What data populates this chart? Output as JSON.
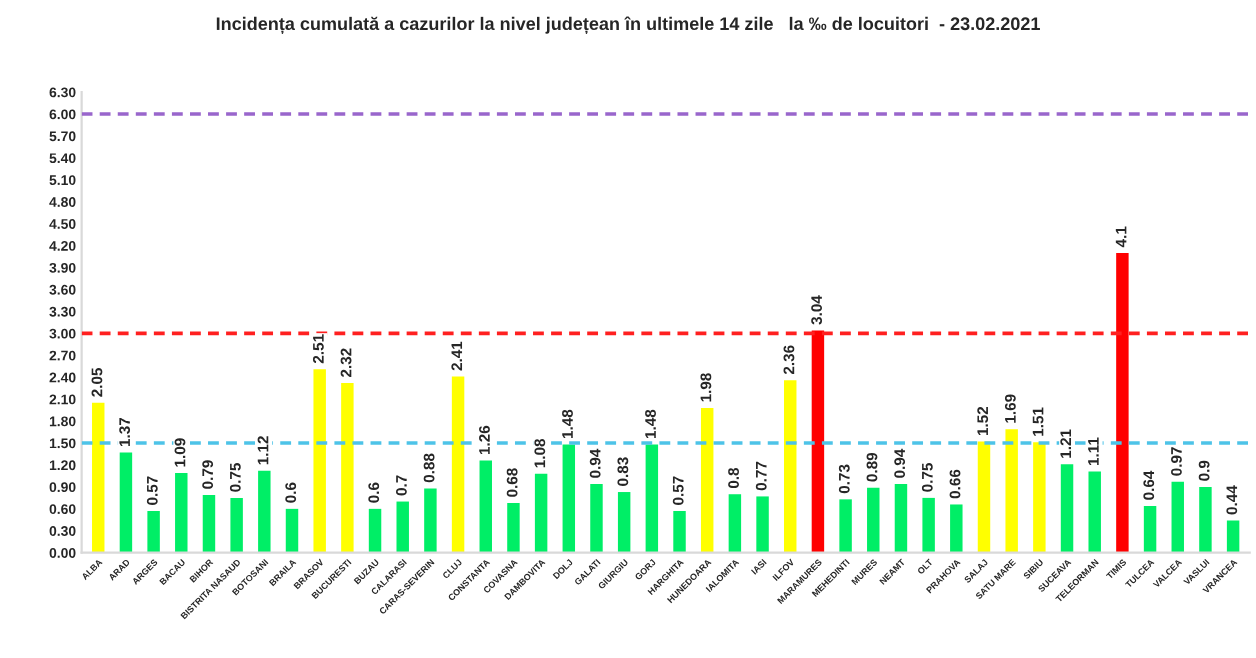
{
  "chart_data": {
    "type": "bar",
    "title": "Incidența cumulată a cazurilor la nivel județean în ultimele 14 zile   la ‰ de locuitori  - 23.02.2021",
    "categories": [
      "ALBA",
      "ARAD",
      "ARGES",
      "BACAU",
      "BIHOR",
      "BISTRITA NASAUD",
      "BOTOSANI",
      "BRAILA",
      "BRASOV",
      "BUCURESTI",
      "BUZAU",
      "CALARASI",
      "CARAS-SEVERIN",
      "CLUJ",
      "CONSTANTA",
      "COVASNA",
      "DAMBOVITA",
      "DOLJ",
      "GALATI",
      "GIURGIU",
      "GORJ",
      "HARGHITA",
      "HUNEDOARA",
      "IALOMITA",
      "IASI",
      "ILFOV",
      "MARAMURES",
      "MEHEDINTI",
      "MURES",
      "NEAMT",
      "OLT",
      "PRAHOVA",
      "SALAJ",
      "SATU MARE",
      "SIBIU",
      "SUCEAVA",
      "TELEORMAN",
      "TIMIS",
      "TULCEA",
      "VALCEA",
      "VASLUI",
      "VRANCEA"
    ],
    "values": [
      2.05,
      1.37,
      0.57,
      1.09,
      0.79,
      0.75,
      1.12,
      0.6,
      2.51,
      2.32,
      0.6,
      0.7,
      0.88,
      2.41,
      1.26,
      0.68,
      1.08,
      1.48,
      0.94,
      0.83,
      1.48,
      0.57,
      1.98,
      0.8,
      0.77,
      2.36,
      3.04,
      0.73,
      0.89,
      0.94,
      0.75,
      0.66,
      1.52,
      1.69,
      1.51,
      1.21,
      1.11,
      4.1,
      0.64,
      0.97,
      0.9,
      0.44
    ],
    "colors": [
      "#ffff00",
      "#00ee66",
      "#00ee66",
      "#00ee66",
      "#00ee66",
      "#00ee66",
      "#00ee66",
      "#00ee66",
      "#ffff00",
      "#ffff00",
      "#00ee66",
      "#00ee66",
      "#00ee66",
      "#ffff00",
      "#00ee66",
      "#00ee66",
      "#00ee66",
      "#00ee66",
      "#00ee66",
      "#00ee66",
      "#00ee66",
      "#00ee66",
      "#ffff00",
      "#00ee66",
      "#00ee66",
      "#ffff00",
      "#ff0000",
      "#00ee66",
      "#00ee66",
      "#00ee66",
      "#00ee66",
      "#00ee66",
      "#ffff00",
      "#ffff00",
      "#ffff00",
      "#00ee66",
      "#00ee66",
      "#ff0000",
      "#00ee66",
      "#00ee66",
      "#00ee66",
      "#00ee66"
    ],
    "data_labels": true,
    "ylim": [
      0,
      6.3
    ],
    "yticks": [
      {
        "value": 0,
        "label": "0.00"
      },
      {
        "value": 0.3,
        "label": "0.30"
      },
      {
        "value": 0.6,
        "label": "0.60"
      },
      {
        "value": 0.9,
        "label": "0.90"
      },
      {
        "value": 1.2,
        "label": "1.20"
      },
      {
        "value": 1.5,
        "label": "1.50"
      },
      {
        "value": 1.8,
        "label": "1.80"
      },
      {
        "value": 2.1,
        "label": "2.10"
      },
      {
        "value": 2.4,
        "label": "2.40"
      },
      {
        "value": 2.7,
        "label": "2.70"
      },
      {
        "value": 3.0,
        "label": "3.00"
      },
      {
        "value": 3.3,
        "label": "3.30"
      },
      {
        "value": 3.6,
        "label": "3.60"
      },
      {
        "value": 3.9,
        "label": "3.90"
      },
      {
        "value": 4.2,
        "label": "4.20"
      },
      {
        "value": 4.5,
        "label": "4.50"
      },
      {
        "value": 4.8,
        "label": "4.80"
      },
      {
        "value": 5.1,
        "label": "5.10"
      },
      {
        "value": 5.4,
        "label": "5.40"
      },
      {
        "value": 5.7,
        "label": "5.70"
      },
      {
        "value": 6.0,
        "label": "6.00"
      },
      {
        "value": 6.3,
        "label": "6.30"
      }
    ],
    "ref_lines": [
      {
        "axis": "y",
        "value": 1.5,
        "color": "#4dc3e8",
        "line_style": "dashed"
      },
      {
        "axis": "y",
        "value": 3.0,
        "color": "#ff2020",
        "line_style": "dashed"
      },
      {
        "axis": "y",
        "value": 6.0,
        "color": "#9966cc",
        "line_style": "dashed"
      }
    ],
    "grid": false,
    "legend": false
  }
}
